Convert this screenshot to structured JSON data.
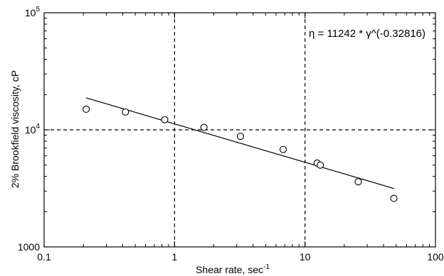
{
  "chart_data": {
    "type": "scatter",
    "xscale": "log",
    "yscale": "log",
    "xlim": [
      0.1,
      100
    ],
    "ylim": [
      1000,
      100000
    ],
    "x_ticks": [
      {
        "value": 0.1,
        "label": "0.1"
      },
      {
        "value": 1,
        "label": "1"
      },
      {
        "value": 10,
        "label": "10"
      },
      {
        "value": 100,
        "label": "100"
      }
    ],
    "y_ticks": [
      {
        "value": 1000,
        "label": "1000"
      },
      {
        "value": 10000,
        "label": "10",
        "exp": "4"
      },
      {
        "value": 100000,
        "label": "10",
        "exp": "5"
      }
    ],
    "xlabel": "Shear rate, sec",
    "xlabel_sup": "-1",
    "ylabel": "2% Brookfield viscosity, cP",
    "annotation": "η = 11242 * γ^(-0.32816)",
    "grid": "dashed lines at x=1, x=10, y=10000",
    "points": [
      {
        "x": 0.21,
        "y": 15000
      },
      {
        "x": 0.42,
        "y": 14200
      },
      {
        "x": 0.84,
        "y": 12200
      },
      {
        "x": 1.68,
        "y": 10500
      },
      {
        "x": 3.2,
        "y": 8800
      },
      {
        "x": 6.8,
        "y": 6800
      },
      {
        "x": 12.4,
        "y": 5200
      },
      {
        "x": 13.1,
        "y": 5000
      },
      {
        "x": 25.6,
        "y": 3600
      },
      {
        "x": 48,
        "y": 2600
      }
    ],
    "fit": {
      "a": 11242,
      "b": -0.32816,
      "x_range": [
        0.21,
        48
      ]
    }
  }
}
